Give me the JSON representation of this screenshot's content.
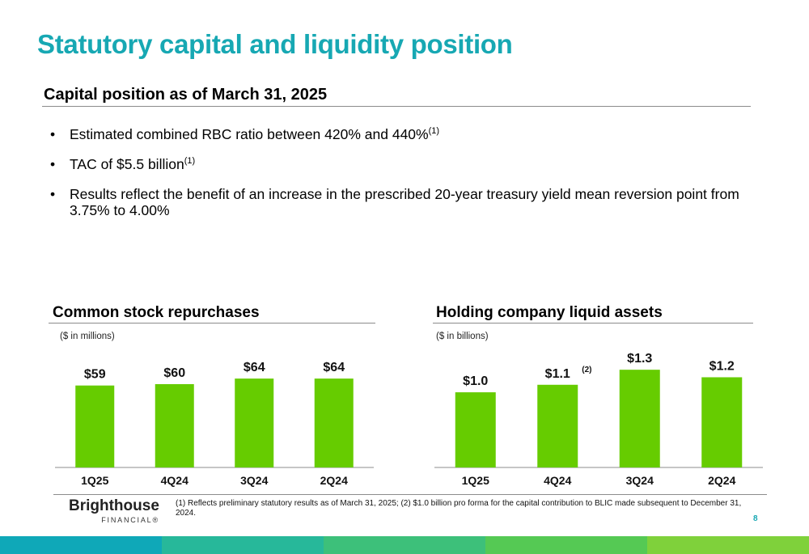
{
  "slide": {
    "title": "Statutory capital and liquidity position",
    "section_title": "Capital position as of March 31, 2025",
    "bullets": [
      {
        "text": "Estimated combined RBC ratio between 420% and 440%",
        "sup": "(1)"
      },
      {
        "text": "TAC of  $5.5 billion",
        "sup": "(1)"
      },
      {
        "text": "Results reflect the benefit of an increase in the prescribed 20-year treasury yield mean reversion point from 3.75% to 4.00%",
        "sup": ""
      }
    ],
    "footnote": "(1) Reflects preliminary statutory results as of March 31, 2025; (2) $1.0 billion pro forma for the capital contribution to BLIC made subsequent to December 31, 2024.",
    "page_number": "8",
    "logo": {
      "main": "Brighthouse",
      "sub": "FINANCIAL®"
    },
    "colors": {
      "title": "#17a8b3",
      "bar": "#66cc00",
      "band": [
        "#0fa8b8",
        "#27b89a",
        "#3dc07a",
        "#55c954",
        "#7fd13b"
      ]
    }
  },
  "chart_data": [
    {
      "type": "bar",
      "title": "Common stock repurchases",
      "unit_label": "($ in millions)",
      "categories": [
        "1Q25",
        "4Q24",
        "3Q24",
        "2Q24"
      ],
      "values": [
        59,
        60,
        64,
        64
      ],
      "value_labels": [
        "$59",
        "$60",
        "$64",
        "$64"
      ],
      "annotations": [
        "",
        "",
        "",
        ""
      ],
      "ylim": [
        0,
        92
      ]
    },
    {
      "type": "bar",
      "title": "Holding company liquid assets",
      "unit_label": "($ in billions)",
      "categories": [
        "1Q25",
        "4Q24",
        "3Q24",
        "2Q24"
      ],
      "values": [
        1.0,
        1.1,
        1.3,
        1.2
      ],
      "value_labels": [
        "$1.0",
        "$1.1",
        "$1.3",
        "$1.2"
      ],
      "annotations": [
        "",
        "(2)",
        "",
        ""
      ],
      "ylim": [
        0,
        1.7
      ]
    }
  ]
}
